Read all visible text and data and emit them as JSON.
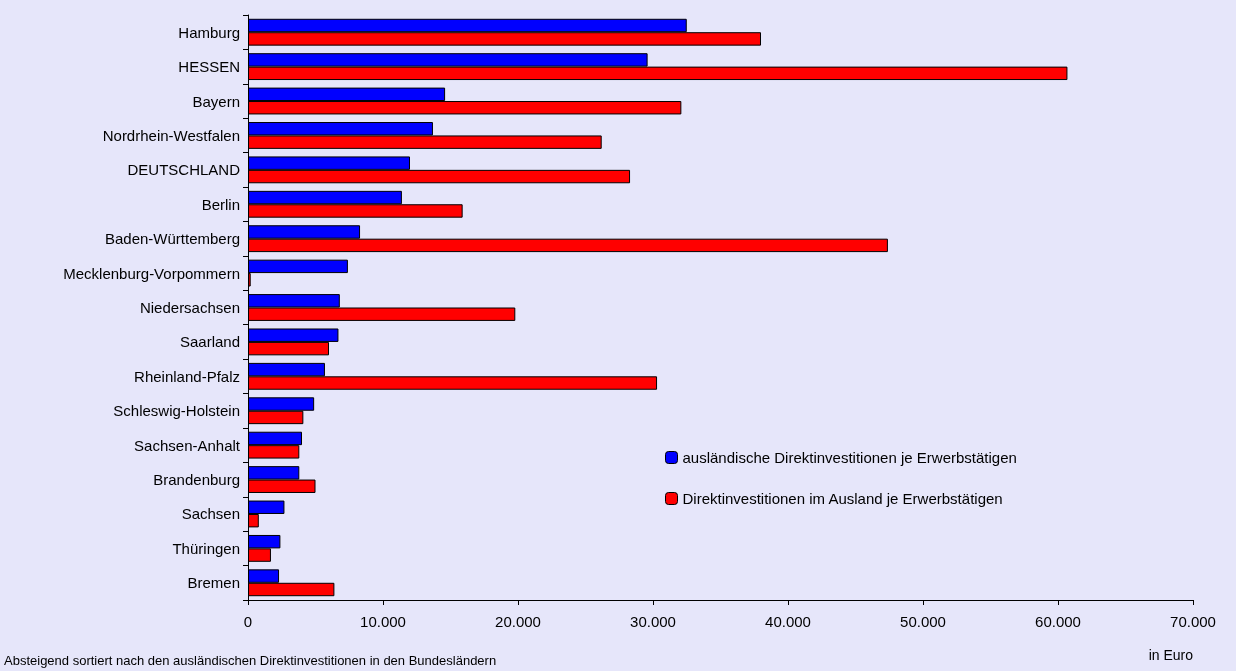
{
  "chart_data": {
    "type": "bar",
    "orientation": "horizontal",
    "xlabel": "in Euro",
    "annotations": [
      "Absteigend sortiert nach den ausländischen Direktinvestitionen in den Bundesländern"
    ],
    "categories": [
      "Hamburg",
      "HESSEN",
      "Bayern",
      "Nordrhein-Westfalen",
      "DEUTSCHLAND",
      "Berlin",
      "Baden-Württemberg",
      "Mecklenburg-Vorpommern",
      "Niedersachsen",
      "Saarland",
      "Rheinland-Pfalz",
      "Schleswig-Holstein",
      "Sachsen-Anhalt",
      "Brandenburg",
      "Sachsen",
      "Thüringen",
      "Bremen"
    ],
    "series": [
      {
        "name": "ausländische Direktinvestitionen je Erwerbstätigen",
        "color": "#0000ff",
        "values": [
          32500,
          29600,
          14600,
          13700,
          12000,
          11400,
          8300,
          7400,
          6800,
          6700,
          5700,
          4900,
          4000,
          3800,
          2700,
          2400,
          2300
        ]
      },
      {
        "name": "Direktinvestitionen im Ausland je Erwerbstätigen",
        "color": "#ff0000",
        "values": [
          38000,
          60700,
          32100,
          26200,
          28300,
          15900,
          47400,
          200,
          19800,
          6000,
          30300,
          4100,
          3800,
          5000,
          800,
          1700,
          6400
        ]
      }
    ],
    "xlim": [
      0,
      70000
    ],
    "xticks": [
      0,
      {
        "value": 10000,
        "label": "10.000"
      },
      {
        "value": 20000,
        "label": "20.000"
      },
      {
        "value": 30000,
        "label": "30.000"
      },
      {
        "value": 40000,
        "label": "40.000"
      },
      {
        "value": 50000,
        "label": "50.000"
      },
      {
        "value": 60000,
        "label": "60.000"
      },
      {
        "value": 70000,
        "label": "70.000"
      }
    ],
    "grid": false,
    "legend": "bottom right"
  }
}
